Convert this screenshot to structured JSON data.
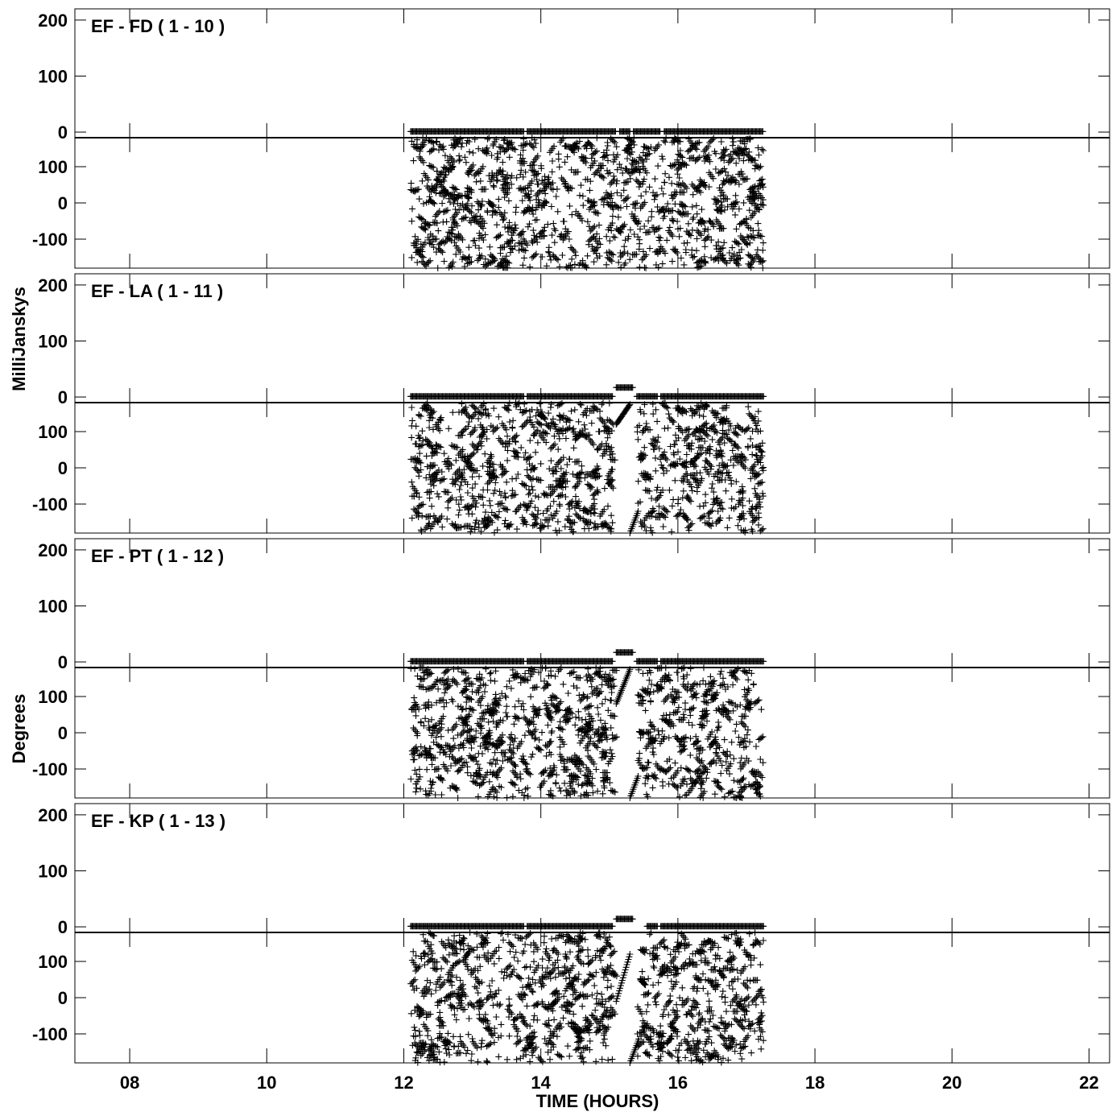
{
  "y_axis_title_amp": "MilliJanskys",
  "y_axis_title_phase": "Degrees",
  "chart_data": {
    "type": "scatter",
    "xlabel": "TIME (HOURS)",
    "xlim": [
      7.2,
      22.3
    ],
    "x_ticks": [
      8,
      10,
      12,
      14,
      16,
      18,
      20,
      22
    ],
    "x_tick_labels": [
      "08",
      "10",
      "12",
      "14",
      "16",
      "18",
      "20",
      "22"
    ],
    "amp_ylim": [
      -10,
      220
    ],
    "amp_ticks": [
      0,
      100,
      200
    ],
    "amp_tick_labels": [
      "0",
      "100",
      "200"
    ],
    "phase_ylim": [
      -180,
      180
    ],
    "phase_ticks": [
      -100,
      0,
      100
    ],
    "phase_tick_labels": [
      "-100",
      "0",
      "100"
    ],
    "marker": "+",
    "color": "#000000",
    "data_time_range": [
      12.1,
      17.25
    ],
    "panels": [
      {
        "title": "EF - FD ( 1 - 10 )",
        "amplitude_mJy": {
          "typical": 1,
          "segments": [
            [
              12.1,
              13.75,
              1
            ],
            [
              13.8,
              15.1,
              1
            ],
            [
              15.15,
              15.3,
              1
            ],
            [
              15.35,
              15.75,
              1
            ],
            [
              15.8,
              17.25,
              1
            ]
          ]
        },
        "phase_deg": {
          "distribution": "uniform -180..180",
          "points_per_hour": 180
        }
      },
      {
        "title": "EF - LA ( 1 - 11 )",
        "amplitude_mJy": {
          "typical": 1,
          "segments": [
            [
              12.1,
              13.75,
              1
            ],
            [
              13.8,
              15.05,
              1
            ],
            [
              15.1,
              15.35,
              17
            ],
            [
              15.4,
              15.7,
              1
            ],
            [
              15.75,
              17.25,
              1
            ]
          ]
        },
        "phase_deg": {
          "distribution": "uniform -180..180",
          "points_per_hour": 180,
          "ramp": [
            [
              15.1,
              120
            ],
            [
              15.3,
              175
            ]
          ]
        }
      },
      {
        "title": "EF - PT ( 1 - 12 )",
        "amplitude_mJy": {
          "typical": 1,
          "segments": [
            [
              12.1,
              13.75,
              1
            ],
            [
              13.8,
              15.05,
              1
            ],
            [
              15.1,
              15.35,
              17
            ],
            [
              15.4,
              15.7,
              1
            ],
            [
              15.75,
              17.25,
              1
            ]
          ]
        },
        "phase_deg": {
          "distribution": "uniform -180..180",
          "points_per_hour": 180,
          "ramp": [
            [
              15.1,
              80
            ],
            [
              15.3,
              175
            ]
          ]
        }
      },
      {
        "title": "EF - KP ( 1 - 13 )",
        "amplitude_mJy": {
          "typical": 1,
          "segments": [
            [
              12.1,
              13.75,
              1
            ],
            [
              13.8,
              15.05,
              1
            ],
            [
              15.1,
              15.35,
              14
            ],
            [
              15.55,
              15.7,
              1
            ],
            [
              15.75,
              17.25,
              1
            ]
          ]
        },
        "phase_deg": {
          "distribution": "uniform -180..180",
          "points_per_hour": 180,
          "ramp": [
            [
              15.1,
              -10
            ],
            [
              15.3,
              120
            ]
          ]
        }
      }
    ]
  }
}
